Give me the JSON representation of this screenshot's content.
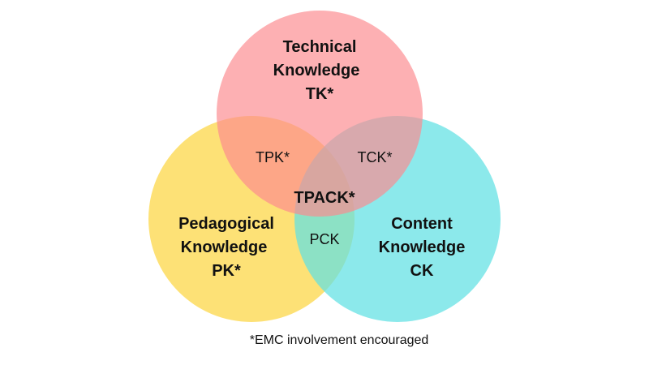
{
  "circles": {
    "technical": {
      "lines": [
        "Technical",
        "Knowledge",
        "TK*"
      ],
      "color": "#fc8a8f"
    },
    "pedagogical": {
      "lines": [
        "Pedagogical",
        "Knowledge",
        "PK*"
      ],
      "color": "#fdd84f"
    },
    "content": {
      "lines": [
        "Content",
        "Knowledge",
        "CK"
      ],
      "color": "#5fe0e3"
    }
  },
  "overlaps": {
    "tpk": "TPK*",
    "tck": "TCK*",
    "pck": "PCK",
    "tpack": "TPACK*"
  },
  "footnote": "*EMC involvement encouraged"
}
